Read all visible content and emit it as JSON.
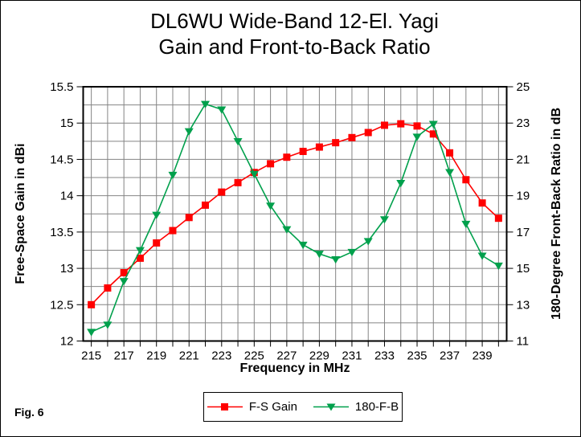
{
  "figure": {
    "caption": "Fig. 6"
  },
  "chart_data": {
    "type": "line",
    "title_lines": [
      "DL6WU Wide-Band 12-El. Yagi",
      "Gain and Front-to-Back Ratio"
    ],
    "grid": true,
    "legend_position": "bottom",
    "colors": {
      "grid": "#848484",
      "axis": "#000000"
    },
    "x": {
      "label": "Frequency in MHz",
      "categories": [
        215,
        216,
        217,
        218,
        219,
        220,
        221,
        222,
        223,
        224,
        225,
        226,
        227,
        228,
        229,
        230,
        231,
        232,
        233,
        234,
        235,
        236,
        237,
        238,
        239,
        240
      ],
      "tick_labels": [
        "215",
        "217",
        "219",
        "221",
        "223",
        "225",
        "227",
        "229",
        "231",
        "233",
        "235",
        "237",
        "239"
      ],
      "tick_label_every": 2
    },
    "y_left": {
      "label": "Free-Space Gain in dBi",
      "min": 12,
      "max": 15.5,
      "tick_step": 0.5,
      "grid_step": 0.25,
      "tick_labels": [
        "12",
        "12.5",
        "13",
        "13.5",
        "14",
        "14.5",
        "15",
        "15.5"
      ]
    },
    "y_right": {
      "label": "180-Degree Front-Back Ratio in dB",
      "min": 11,
      "max": 25,
      "tick_step": 2,
      "tick_labels": [
        "11",
        "13",
        "15",
        "17",
        "19",
        "21",
        "23",
        "25"
      ]
    },
    "series": [
      {
        "name": "F-S Gain",
        "axis": "left",
        "color": "#FF0000",
        "marker": "square",
        "values": [
          12.5,
          12.73,
          12.94,
          13.14,
          13.35,
          13.52,
          13.7,
          13.87,
          14.05,
          14.18,
          14.32,
          14.44,
          14.53,
          14.61,
          14.67,
          14.73,
          14.8,
          14.87,
          14.97,
          14.99,
          14.96,
          14.85,
          14.59,
          14.22,
          13.9,
          13.69
        ]
      },
      {
        "name": "180-F-B",
        "axis": "right",
        "color": "#00A04C",
        "marker": "triangle-down",
        "values": [
          11.5,
          11.9,
          14.3,
          16.0,
          17.95,
          20.15,
          22.55,
          24.05,
          23.75,
          22.0,
          20.2,
          18.45,
          17.15,
          16.3,
          15.8,
          15.5,
          15.9,
          16.5,
          17.7,
          19.7,
          22.25,
          22.95,
          20.3,
          17.45,
          15.7,
          15.15
        ]
      }
    ]
  }
}
